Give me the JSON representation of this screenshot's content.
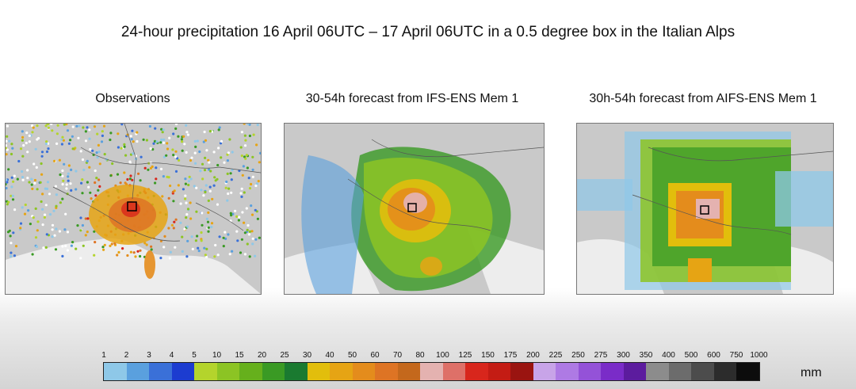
{
  "title": "24-hour precipitation 16 April 06UTC – 17 April 06UTC in a 0.5 degree box in the Italian Alps",
  "panels": [
    {
      "title": "Observations"
    },
    {
      "title": "30-54h forecast from IFS-ENS Mem 1"
    },
    {
      "title": "30h-54h forecast from AIFS-ENS Mem 1"
    }
  ],
  "legend": {
    "unit": "mm",
    "ticks": [
      "1",
      "2",
      "3",
      "4",
      "5",
      "10",
      "15",
      "20",
      "25",
      "30",
      "40",
      "50",
      "60",
      "70",
      "80",
      "100",
      "125",
      "150",
      "175",
      "200",
      "225",
      "250",
      "275",
      "300",
      "350",
      "400",
      "500",
      "600",
      "750",
      "1000"
    ],
    "colors": [
      "#8ec8e8",
      "#5aa0de",
      "#3a70d8",
      "#1c3cd0",
      "#b4d42c",
      "#8cc424",
      "#66b01c",
      "#3a9a24",
      "#1a7a30",
      "#e2be0c",
      "#e6a414",
      "#e48c1c",
      "#de7424",
      "#c4681c",
      "#e4b2b0",
      "#de7068",
      "#d8261c",
      "#c41c14",
      "#9a1410",
      "#c8a4e8",
      "#ae7ae4",
      "#9452d8",
      "#7a2cc8",
      "#5c1c9e",
      "#8c8c8c",
      "#6c6c6c",
      "#4c4c4c",
      "#2c2c2c",
      "#0c0c0c"
    ]
  }
}
